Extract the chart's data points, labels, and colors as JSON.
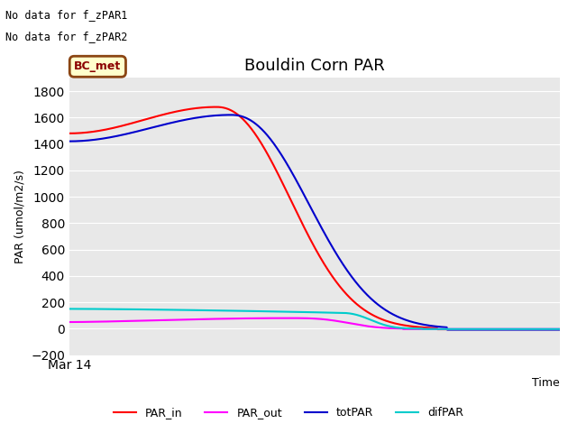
{
  "title": "Bouldin Corn PAR",
  "xlabel": "Time",
  "ylabel": "PAR (umol/m2/s)",
  "ylim": [
    -200,
    1900
  ],
  "yticks": [
    -200,
    0,
    200,
    400,
    600,
    800,
    1000,
    1200,
    1400,
    1600,
    1800
  ],
  "xticklabels": [
    "Mar 14"
  ],
  "background_color": "#e8e8e8",
  "no_data_text1": "No data for f_zPAR1",
  "no_data_text2": "No data for f_zPAR2",
  "legend_label": "BC_met",
  "legend_bg": "#ffffcc",
  "legend_border": "#8b4513",
  "lines": {
    "PAR_in": {
      "color": "#ff0000",
      "linewidth": 1.5
    },
    "PAR_out": {
      "color": "#ff00ff",
      "linewidth": 1.5
    },
    "totPAR": {
      "color": "#0000cc",
      "linewidth": 1.5
    },
    "difPAR": {
      "color": "#00cccc",
      "linewidth": 1.5
    }
  }
}
